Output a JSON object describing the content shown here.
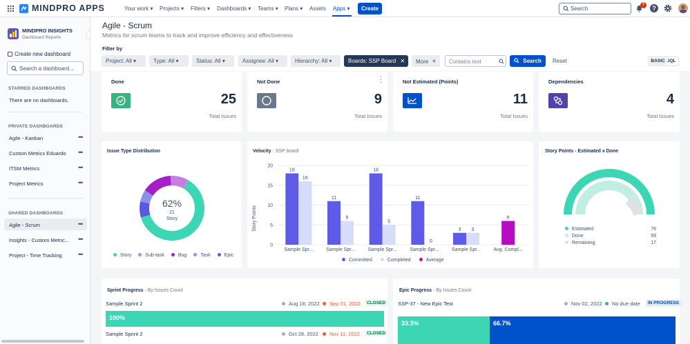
{
  "topnav": {
    "brand": "MINDPRO APPS",
    "items": [
      "Your work",
      "Projects",
      "Filters",
      "Dashboards",
      "Teams",
      "Plans",
      "Assets",
      "Apps"
    ],
    "create": "Create",
    "search_placeholder": "Search",
    "notification_count": "7"
  },
  "sidebar": {
    "app_name": "MINDPRO INSIGHTS",
    "app_sub": "Dashboard Reports",
    "create_dashboard": "Create new dashboard",
    "search_placeholder": "Search a dashboard...",
    "starred_header": "STARRED DASHBOARDS",
    "starred_empty": "There are no dashboards.",
    "private_header": "PRIVATE DASHBOARDS",
    "private_items": [
      "Agile - Kanban",
      "Custom Metrics Eduardo",
      "ITSM Metrics",
      "Project Metrics"
    ],
    "shared_header": "SHARED DASHBOARDS",
    "shared_items": [
      "Agile - Scrum",
      "Insights - Custom Metric...",
      "Project - Time Tracking"
    ]
  },
  "page": {
    "title": "Agile - Scrum",
    "subtitle": "Metrics for scrum teams to track and improve efficiency and effectiveness",
    "filter_by": "Filter by"
  },
  "filters": {
    "project": "Project: All",
    "type": "Type: All",
    "status": "Status: All",
    "assignee": "Assignee: All",
    "hierarchy": "Hierarchy: All",
    "boards": "Boards: SSP Board",
    "more": "More",
    "contains_placeholder": "Contains text",
    "search": "Search",
    "reset": "Reset",
    "basic": "BASIC",
    "jql": "JQL"
  },
  "stats": [
    {
      "title": "Done",
      "count": "25",
      "sub": "Total Issues",
      "color": "#36B37E"
    },
    {
      "title": "Not Done",
      "count": "9",
      "sub": "Total Issues",
      "color": "#6B778C"
    },
    {
      "title": "Not Estimated (Points)",
      "count": "11",
      "sub": "Total Issues",
      "color": "#0052CC"
    },
    {
      "title": "Dependencies",
      "count": "4",
      "sub": "Total Issues",
      "color": "#5243AA"
    }
  ],
  "issue_type": {
    "title": "Issue Type Distribution",
    "center_pct": "62%",
    "center_count": "21",
    "center_label": "Story",
    "legend": [
      {
        "name": "Story",
        "color": "#3DD6B5",
        "value": 62
      },
      {
        "name": "Sub-task",
        "color": "#C57FE0",
        "value": 9
      },
      {
        "name": "Bug",
        "color": "#A21FC9",
        "value": 15
      },
      {
        "name": "Task",
        "color": "#8D8FE8",
        "value": 6
      },
      {
        "name": "Epic",
        "color": "#5A5AE0",
        "value": 8
      }
    ]
  },
  "chart_data": {
    "type": "bar",
    "title": "Velocity",
    "subtitle": "SSP board",
    "ylabel": "Story Points",
    "ylim": [
      0,
      20
    ],
    "yticks": [
      0,
      5,
      10,
      15,
      20
    ],
    "categories": [
      "Sample Spr...",
      "Sample Spr...",
      "Sample Spr...",
      "Sample Spr...",
      "Sample Spr...",
      "Avg. Compl..."
    ],
    "series": [
      {
        "name": "Committed",
        "color": "#5E5CE6",
        "values": [
          18,
          11,
          18,
          11,
          3,
          null
        ]
      },
      {
        "name": "Completed",
        "color": "#D6DCFA",
        "values": [
          16,
          6,
          5,
          0,
          3,
          null
        ]
      },
      {
        "name": "Average",
        "color": "#B70DC2",
        "values": [
          null,
          null,
          null,
          null,
          null,
          6
        ]
      }
    ]
  },
  "story_points": {
    "title": "Story Points - Estimated x Done",
    "rows": [
      {
        "label": "Estimated",
        "value": "76",
        "color": "#3DD6B5"
      },
      {
        "label": "Done",
        "value": "59",
        "color": "#C1EDE3"
      },
      {
        "label": "Remaining",
        "value": "17",
        "color": "#DFE1E6"
      }
    ]
  },
  "sprint_progress": {
    "title": "Sprint Progress",
    "subtitle": "By Issues Count",
    "rows": [
      {
        "name": "Sample Sprint 2",
        "start": "Aug 18, 2022",
        "end": "Sep 01, 2022",
        "status": "CLOSED",
        "pct": "100%"
      },
      {
        "name": "Sample Sprint 2",
        "start": "Oct 28, 2022",
        "end": "Nov 11, 2022",
        "status": "CLOSED"
      }
    ]
  },
  "epic_progress": {
    "title": "Epic Progress",
    "subtitle": "By Issues Count",
    "name": "SSP-37 - New Epic Test",
    "start": "Nov 02, 2022",
    "due": "No due date",
    "status": "IN PROGRESS",
    "done_pct": "33.3%",
    "progress_pct": "66.7%"
  }
}
